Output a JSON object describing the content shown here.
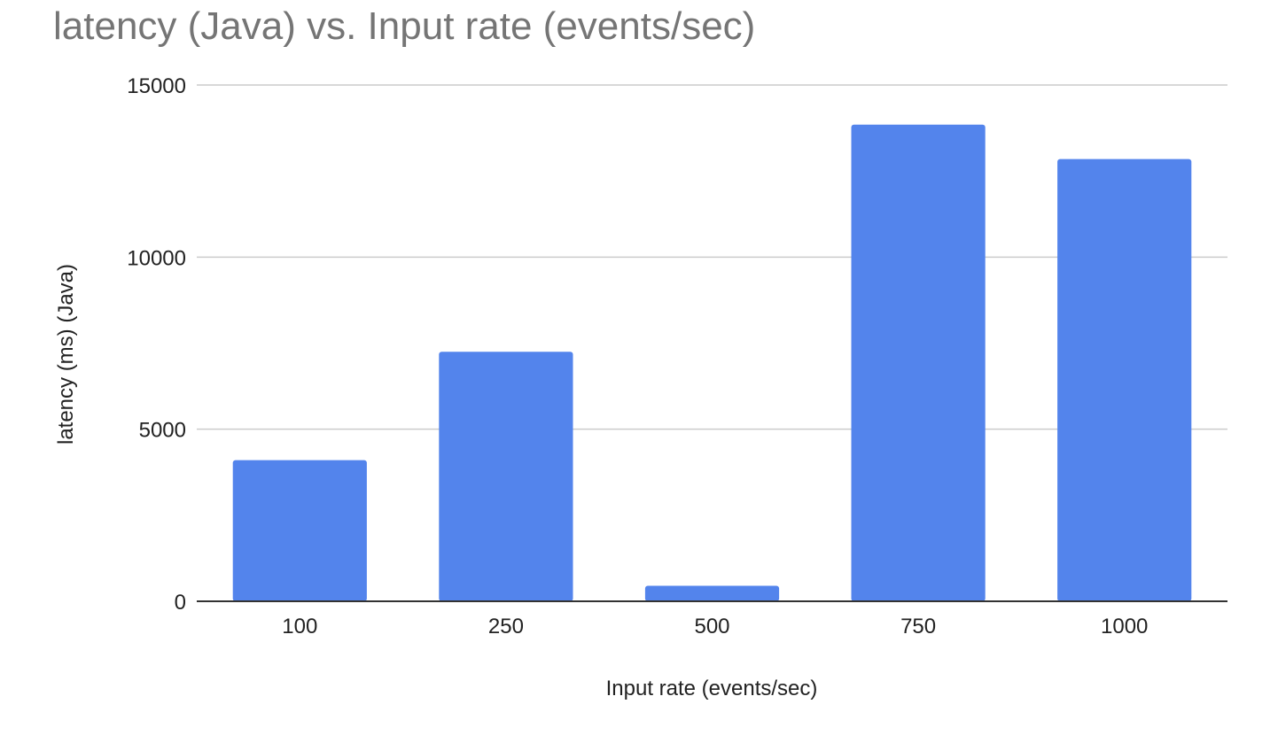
{
  "chart_data": {
    "type": "bar",
    "title": "latency (Java) vs. Input rate (events/sec)",
    "xlabel": "Input rate (events/sec)",
    "ylabel": "latency (ms) (Java)",
    "categories": [
      "100",
      "250",
      "500",
      "750",
      "1000"
    ],
    "series": [
      {
        "values": [
          4100,
          7250,
          450,
          13850,
          12850
        ],
        "color": "#5384ec"
      }
    ],
    "ylim": [
      0,
      15000
    ],
    "yticks": [
      0,
      5000,
      10000,
      15000
    ],
    "grid": true,
    "legend": "none"
  }
}
